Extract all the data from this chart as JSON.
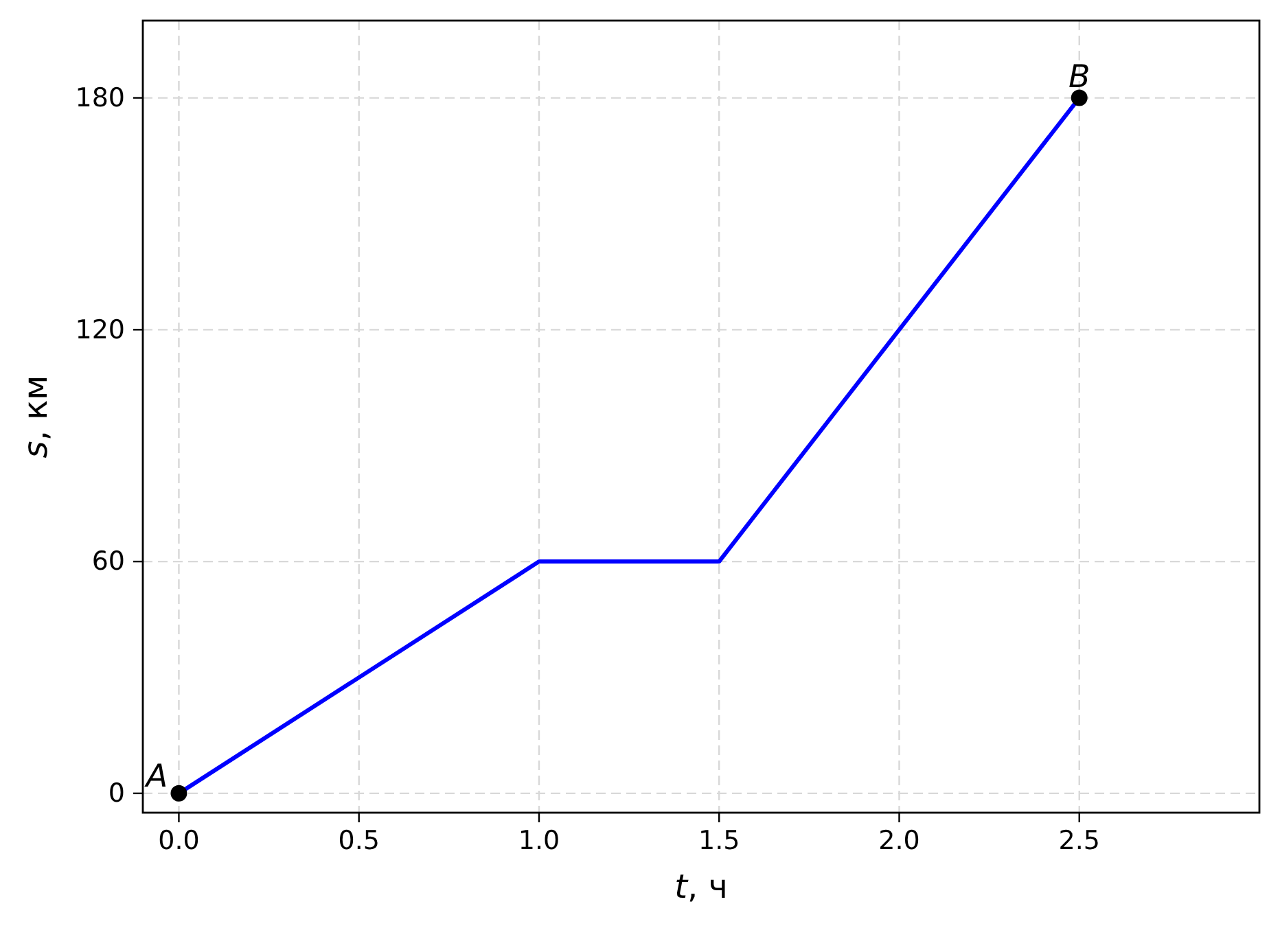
{
  "chart_data": {
    "type": "line",
    "xlabel": "t, ч",
    "ylabel": "s, км",
    "xlim": [
      -0.1,
      3.0
    ],
    "ylim": [
      -5,
      200
    ],
    "xticks": [
      {
        "value": 0,
        "label": "0.0"
      },
      {
        "value": 0.5,
        "label": "0.5"
      },
      {
        "value": 1,
        "label": "1.0"
      },
      {
        "value": 1.5,
        "label": "1.5"
      },
      {
        "value": 2,
        "label": "2.0"
      },
      {
        "value": 2.5,
        "label": "2.5"
      }
    ],
    "yticks": [
      0,
      60,
      120,
      180
    ],
    "grid": true,
    "line_style": "solid",
    "series": [
      {
        "type": "line",
        "color": "#0000ff",
        "x": [
          0,
          1,
          1.5,
          2.5
        ],
        "values": [
          0,
          60,
          60,
          180
        ]
      },
      {
        "type": "scatter",
        "color": "#000000",
        "x": [
          0,
          2.5
        ],
        "values": [
          0,
          180
        ],
        "marker": "circle"
      }
    ],
    "annotations": [
      {
        "text": "A",
        "x": 0,
        "y": 0
      },
      {
        "text": "B",
        "x": 2.5,
        "y": 180
      }
    ]
  }
}
